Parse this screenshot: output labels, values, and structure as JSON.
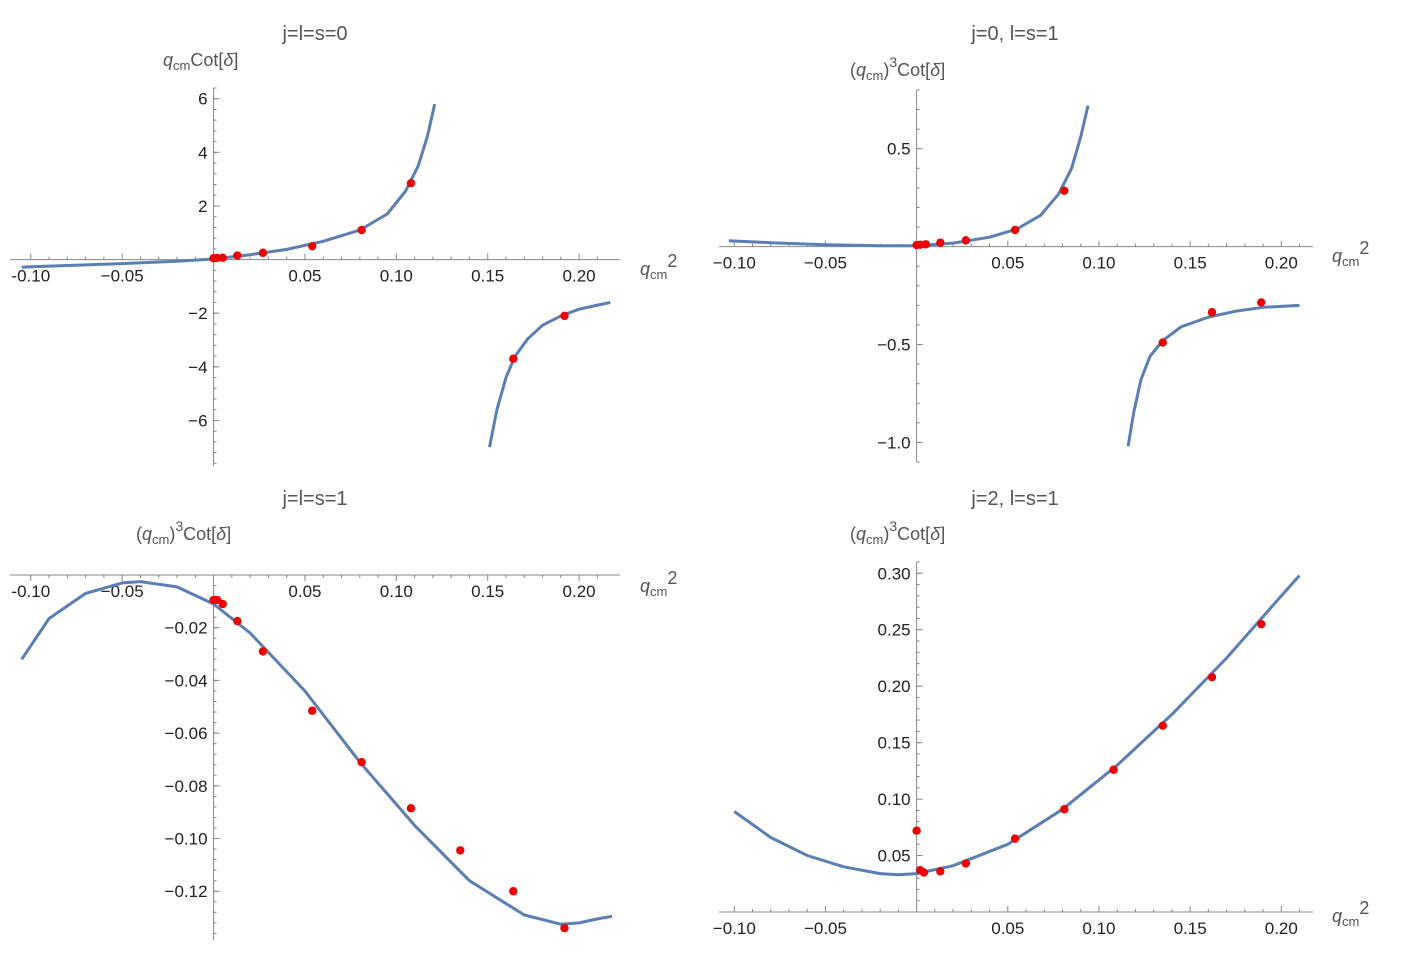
{
  "chart_data": [
    {
      "type": "scatter",
      "title": "j=l=s=0",
      "xlabel": "qcm2",
      "ylabel": "qcmCot[δ]",
      "xlim": [
        -0.107,
        0.218
      ],
      "ylim": [
        -7.7,
        6.4
      ],
      "xticks": [
        -0.1,
        -0.05,
        0.05,
        0.1,
        0.15,
        0.2
      ],
      "xtick_labels": [
        "-0.10",
        "−0.05",
        "0.05",
        "0.10",
        "0.15",
        "0.20"
      ],
      "yticks": [
        -6,
        -4,
        -2,
        2,
        4,
        6
      ],
      "ytick_labels": [
        "−6",
        "−4",
        "−2",
        "2",
        "4",
        "6"
      ],
      "points": {
        "x": [
          0.0,
          0.002,
          0.005,
          0.013,
          0.027,
          0.054,
          0.081,
          0.108,
          0.164,
          0.192
        ],
        "y": [
          0.05,
          0.06,
          0.07,
          0.15,
          0.25,
          0.5,
          1.1,
          2.85,
          -3.7,
          -2.1
        ]
      },
      "fit_branches": [
        {
          "x": [
            -0.105,
            -0.08,
            -0.05,
            -0.02,
            0.0,
            0.02,
            0.04,
            0.06,
            0.08,
            0.095,
            0.105,
            0.112,
            0.117,
            0.121
          ],
          "y": [
            -0.28,
            -0.22,
            -0.15,
            -0.06,
            0.02,
            0.18,
            0.38,
            0.68,
            1.1,
            1.7,
            2.55,
            3.5,
            4.6,
            5.8
          ]
        },
        {
          "x": [
            0.151,
            0.155,
            0.16,
            0.165,
            0.172,
            0.18,
            0.19,
            0.2,
            0.21,
            0.217
          ],
          "y": [
            -7.0,
            -5.6,
            -4.4,
            -3.6,
            -2.95,
            -2.45,
            -2.1,
            -1.85,
            -1.7,
            -1.6
          ]
        }
      ]
    },
    {
      "type": "scatter",
      "title": "j=0, l=s=1",
      "xlabel": "qcm2",
      "ylabel": "(qcm)3Cot[δ]",
      "xlim": [
        -0.104,
        0.213
      ],
      "ylim": [
        -1.1,
        0.8
      ],
      "xticks": [
        -0.1,
        -0.05,
        0.05,
        0.1,
        0.15,
        0.2
      ],
      "xtick_labels": [
        "−0.10",
        "−0.05",
        "0.05",
        "0.10",
        "0.15",
        "0.20"
      ],
      "yticks": [
        -1.0,
        -0.5,
        0.5
      ],
      "ytick_labels": [
        "−1.0",
        "−0.5",
        "0.5"
      ],
      "points": {
        "x": [
          0.0,
          0.002,
          0.005,
          0.013,
          0.027,
          0.054,
          0.081,
          0.135,
          0.162,
          0.189
        ],
        "y": [
          0.008,
          0.01,
          0.012,
          0.02,
          0.032,
          0.085,
          0.285,
          -0.49,
          -0.335,
          -0.285
        ]
      },
      "fit_branches": [
        {
          "x": [
            -0.103,
            -0.08,
            -0.05,
            -0.02,
            0.0,
            0.02,
            0.04,
            0.055,
            0.068,
            0.078,
            0.085,
            0.09,
            0.094
          ],
          "y": [
            0.03,
            0.02,
            0.01,
            0.004,
            0.005,
            0.018,
            0.048,
            0.09,
            0.16,
            0.27,
            0.4,
            0.56,
            0.72
          ]
        },
        {
          "x": [
            0.116,
            0.119,
            0.123,
            0.128,
            0.135,
            0.145,
            0.16,
            0.175,
            0.19,
            0.21
          ],
          "y": [
            -1.02,
            -0.85,
            -0.68,
            -0.56,
            -0.48,
            -0.41,
            -0.36,
            -0.33,
            -0.31,
            -0.3
          ]
        }
      ]
    },
    {
      "type": "scatter",
      "title": "j=l=s=1",
      "xlabel": "qcm2",
      "ylabel": "(qcm)3Cot[δ]",
      "xlim": [
        -0.107,
        0.218
      ],
      "ylim": [
        -0.1385,
        0.0
      ],
      "xticks": [
        -0.1,
        -0.05,
        0.05,
        0.1,
        0.15,
        0.2
      ],
      "xtick_labels": [
        "-0.10",
        "−0.05",
        "0.05",
        "0.10",
        "0.15",
        "0.20"
      ],
      "yticks": [
        -0.12,
        -0.1,
        -0.08,
        -0.06,
        -0.04,
        -0.02
      ],
      "ytick_labels": [
        "−0.12",
        "−0.10",
        "−0.08",
        "−0.06",
        "−0.04",
        "−0.02"
      ],
      "points": {
        "x": [
          0.0,
          0.002,
          0.005,
          0.013,
          0.027,
          0.054,
          0.081,
          0.108,
          0.135,
          0.164,
          0.192
        ],
        "y": [
          -0.0095,
          -0.0095,
          -0.011,
          -0.0175,
          -0.029,
          -0.0515,
          -0.071,
          -0.0885,
          -0.1045,
          -0.12,
          -0.134
        ]
      },
      "fit_branches": [
        {
          "x": [
            -0.105,
            -0.09,
            -0.07,
            -0.05,
            -0.04,
            -0.02,
            0.0,
            0.02,
            0.05,
            0.08,
            0.11,
            0.14,
            0.17,
            0.19,
            0.2,
            0.21,
            0.218
          ],
          "y": [
            -0.032,
            -0.0165,
            -0.007,
            -0.003,
            -0.0025,
            -0.0045,
            -0.011,
            -0.022,
            -0.044,
            -0.071,
            -0.095,
            -0.116,
            -0.129,
            -0.1325,
            -0.132,
            -0.1305,
            -0.1295
          ]
        }
      ]
    },
    {
      "type": "scatter",
      "title": "j=2, l=s=1",
      "xlabel": "qcm2",
      "ylabel": "(qcm)3Cot[δ]",
      "xlim": [
        -0.104,
        0.213
      ],
      "ylim": [
        0.0,
        0.31
      ],
      "xticks": [
        -0.1,
        -0.05,
        0.05,
        0.1,
        0.15,
        0.2
      ],
      "xtick_labels": [
        "−0.10",
        "−0.05",
        "0.05",
        "0.10",
        "0.15",
        "0.20"
      ],
      "yticks": [
        0.05,
        0.1,
        0.15,
        0.2,
        0.25,
        0.3
      ],
      "ytick_labels": [
        "0.05",
        "0.10",
        "0.15",
        "0.20",
        "0.25",
        "0.30"
      ],
      "points": {
        "x": [
          0.0,
          0.002,
          0.004,
          0.013,
          0.027,
          0.054,
          0.081,
          0.108,
          0.135,
          0.162,
          0.189
        ],
        "y": [
          0.072,
          0.037,
          0.035,
          0.036,
          0.043,
          0.065,
          0.091,
          0.126,
          0.165,
          0.208,
          0.255
        ]
      },
      "fit_branches": [
        {
          "x": [
            -0.1,
            -0.08,
            -0.06,
            -0.04,
            -0.02,
            -0.01,
            0.0,
            0.02,
            0.05,
            0.08,
            0.11,
            0.14,
            0.17,
            0.2,
            0.21
          ],
          "y": [
            0.089,
            0.066,
            0.05,
            0.04,
            0.034,
            0.033,
            0.034,
            0.041,
            0.06,
            0.091,
            0.13,
            0.175,
            0.225,
            0.28,
            0.298
          ]
        }
      ]
    }
  ]
}
